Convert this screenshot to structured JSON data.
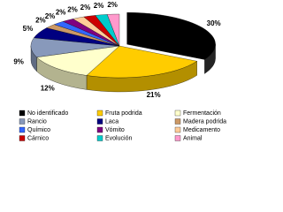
{
  "chart_data": {
    "type": "pie3d",
    "categories": [
      "No identificado",
      "Fruta podrida",
      "Fermentación",
      "Rancio",
      "Laca",
      "Madera podrida",
      "Químico",
      "Vómito",
      "Medicamento",
      "Cárnico",
      "Evolución",
      "Animal"
    ],
    "values": [
      30,
      21,
      12,
      9,
      5,
      2,
      2,
      2,
      2,
      2,
      2,
      2
    ],
    "value_labels": [
      "30%",
      "21%",
      "12%",
      "9%",
      "5%",
      "2%",
      "2%",
      "2%",
      "2%",
      "2%",
      "2%",
      "2%"
    ],
    "colors": [
      "#000000",
      "#ffcc00",
      "#ffffcc",
      "#8899bb",
      "#000080",
      "#cc9966",
      "#3366ff",
      "#800080",
      "#ffcc99",
      "#cc0000",
      "#00cccc",
      "#ff99cc"
    ]
  }
}
